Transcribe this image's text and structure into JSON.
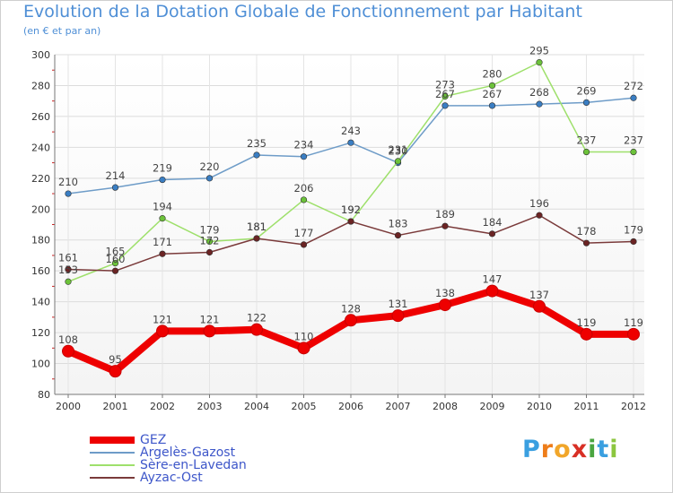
{
  "header": {
    "title": "Evolution de la Dotation Globale de Fonctionnement par Habitant",
    "subtitle": "(en € et par an)"
  },
  "brand": {
    "letters": [
      "P",
      "r",
      "o",
      "x",
      "i",
      "t",
      "i"
    ],
    "colors": [
      "#3a9fe0",
      "#ee7d1a",
      "#f1a62a",
      "#d82f25",
      "#4aa540",
      "#3a9fe0",
      "#8cc63f"
    ]
  },
  "chart_data": {
    "type": "line",
    "title": "Evolution de la Dotation Globale de Fonctionnement par Habitant",
    "subtitle": "(en € et par an)",
    "xlabel": "",
    "ylabel": "",
    "ylim": [
      80,
      300
    ],
    "yticks": [
      80,
      100,
      120,
      140,
      160,
      180,
      200,
      220,
      240,
      260,
      280,
      300
    ],
    "grid": true,
    "legend_position": "bottom-left",
    "x": [
      "2000",
      "2001",
      "2002",
      "2003",
      "2004",
      "2005",
      "2006",
      "2007",
      "2008",
      "2009",
      "2010",
      "2011",
      "2012"
    ],
    "series": [
      {
        "name": "Argelès-Gazost",
        "color": "#6e9cc8",
        "marker": "#3a7ec3",
        "width": "thin",
        "values": [
          210,
          214,
          219,
          220,
          235,
          234,
          243,
          230,
          267,
          267,
          268,
          269,
          272
        ]
      },
      {
        "name": "Sère-en-Lavedan",
        "color": "#9ee06b",
        "marker": "#6cc23a",
        "width": "thin",
        "values": [
          153,
          165,
          194,
          179,
          181,
          206,
          192,
          231,
          273,
          280,
          295,
          237,
          237
        ]
      },
      {
        "name": "Ayzac-Ost",
        "color": "#7a3a3a",
        "marker": "#6b2424",
        "width": "thin",
        "values": [
          161,
          160,
          171,
          172,
          181,
          177,
          192,
          183,
          189,
          184,
          196,
          178,
          179
        ]
      },
      {
        "name": "GEZ",
        "color": "#ee0000",
        "marker": "#ee0000",
        "width": "thick",
        "values": [
          108,
          95,
          121,
          121,
          122,
          110,
          128,
          131,
          138,
          147,
          137,
          119,
          119
        ]
      }
    ]
  },
  "legend": [
    {
      "label": "GEZ",
      "color": "#ee0000",
      "width": "thick"
    },
    {
      "label": "Argelès-Gazost",
      "color": "#6e9cc8",
      "width": "thin"
    },
    {
      "label": "Sère-en-Lavedan",
      "color": "#9ee06b",
      "width": "thin"
    },
    {
      "label": "Ayzac-Ost",
      "color": "#7a3a3a",
      "width": "thin"
    }
  ]
}
